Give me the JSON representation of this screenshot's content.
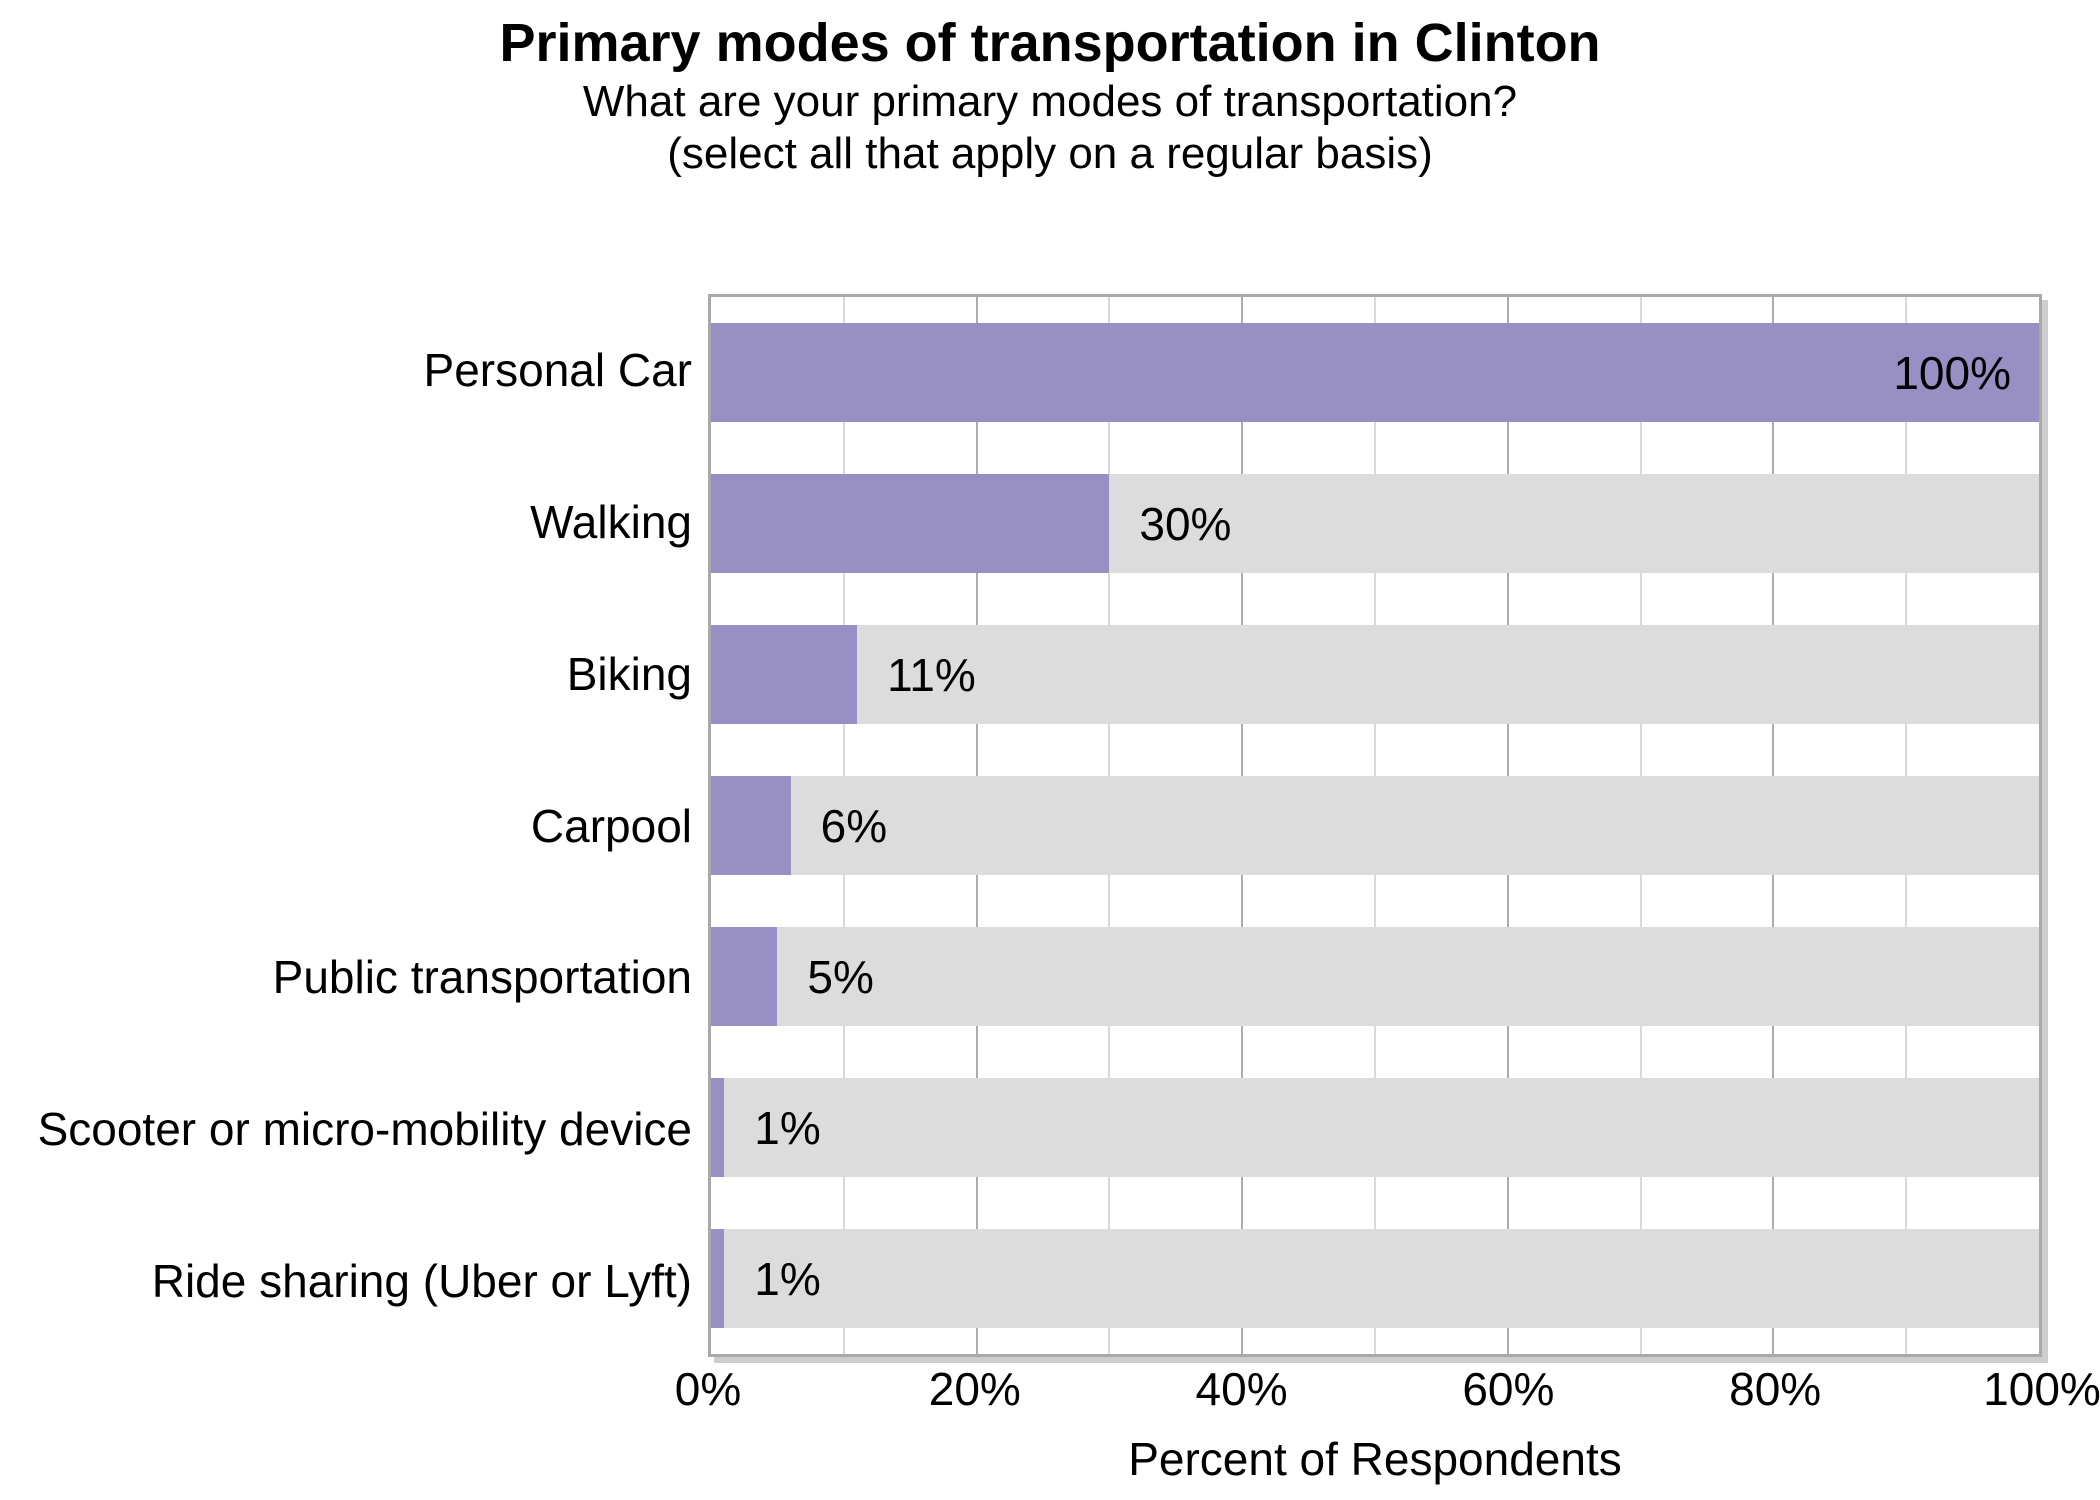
{
  "chart_data": {
    "type": "bar",
    "orientation": "horizontal",
    "title": "Primary modes of transportation in Clinton",
    "subtitle_lines": [
      "What are your primary modes of transportation?",
      "(select all that apply on a regular basis)"
    ],
    "categories": [
      "Personal Car",
      "Walking",
      "Biking",
      "Carpool",
      "Public transportation",
      "Scooter or micro-mobility device",
      "Ride sharing (Uber or Lyft)"
    ],
    "values": [
      100,
      30,
      11,
      6,
      5,
      1,
      1
    ],
    "value_labels": [
      "100%",
      "30%",
      "11%",
      "6%",
      "5%",
      "1%",
      "1%"
    ],
    "xlabel": "Percent of Respondents",
    "xlim": [
      0,
      100
    ],
    "x_ticks": [
      "0%",
      "20%",
      "40%",
      "60%",
      "80%",
      "100%"
    ],
    "x_tick_values": [
      0,
      20,
      40,
      60,
      80,
      100
    ],
    "grid": {
      "show": true,
      "minor_step": 10,
      "major_step": 20
    },
    "legend": "none",
    "colors": {
      "bar": "#9890C4",
      "track": "#DCDCDC",
      "grid_minor": "#D9D9D9",
      "grid_major": "#ACACAC",
      "plot_border": "#A9A9A9",
      "text": "#000000"
    }
  }
}
